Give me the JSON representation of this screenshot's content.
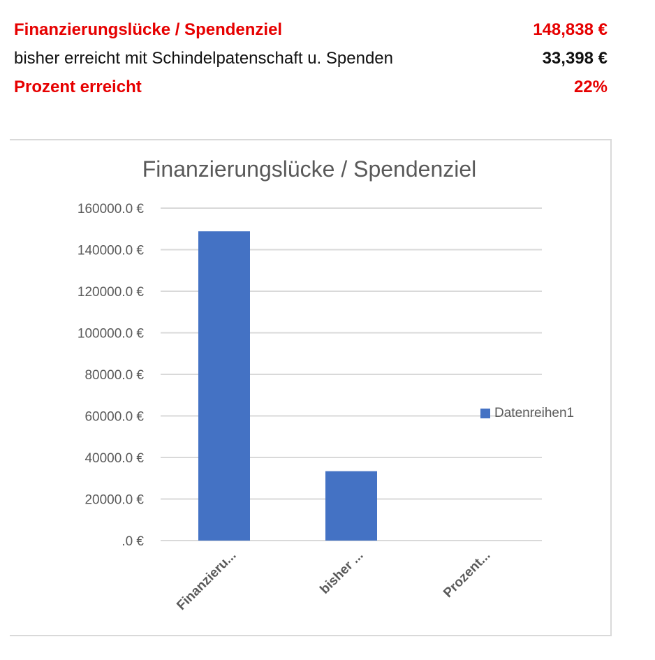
{
  "summary": {
    "rows": [
      {
        "label": "Finanzierungslücke / Spendenziel",
        "value": "148,838 €",
        "color": "#e60000"
      },
      {
        "label": "bisher erreicht mit Schindelpatenschaft u. Spenden",
        "value": "33,398 €",
        "color": "#111111"
      },
      {
        "label": "Prozent erreicht",
        "value": "22%",
        "color": "#e60000"
      }
    ]
  },
  "chart_data": {
    "type": "bar",
    "title": "Finanzierungslücke / Spendenziel",
    "categories": [
      "Finanzieru...",
      "bisher ...",
      "Prozent..."
    ],
    "series": [
      {
        "name": "Datenreihen1",
        "values": [
          148838,
          33398,
          0.22
        ],
        "color": "#4472c4"
      }
    ],
    "yticks": [
      "160000.0 €",
      "140000.0 €",
      "120000.0 €",
      "100000.0 €",
      "80000.0 €",
      "60000.0 €",
      "40000.0 €",
      "20000.0 €",
      ".0 €"
    ],
    "ylim": [
      0,
      160000
    ],
    "grid": true,
    "legend_position": "right"
  }
}
